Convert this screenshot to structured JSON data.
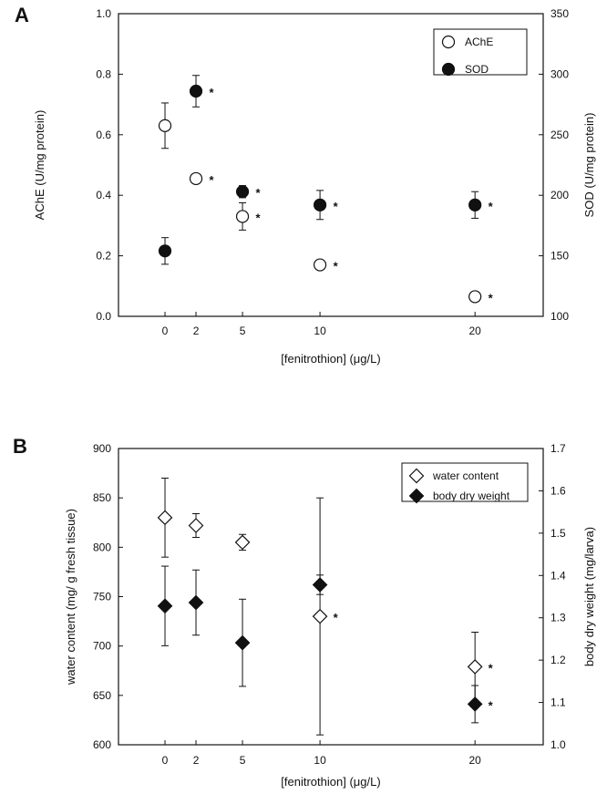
{
  "chart_data": [
    {
      "type": "scatter",
      "panel_label": "A",
      "xlabel": "[fenitrothion] (μg/L)",
      "ylabel_left": "AChE (U/mg protein)",
      "ylabel_right": "SOD (U/mg protein)",
      "x_ticks": [
        0,
        2,
        5,
        10,
        20
      ],
      "y_left_ticks": [
        "0.0",
        "0.2",
        "0.4",
        "0.6",
        "0.8",
        "1.0"
      ],
      "y_right_ticks": [
        "100",
        "150",
        "200",
        "250",
        "300",
        "350"
      ],
      "ylim_left": [
        0,
        1.0
      ],
      "ylim_right": [
        100,
        350
      ],
      "legend_position": "top-right",
      "series": [
        {
          "name": "AChE",
          "marker": "circle-open",
          "axis": "left",
          "x": [
            0,
            2,
            5,
            10,
            20
          ],
          "y": [
            0.63,
            0.455,
            0.33,
            0.17,
            0.065
          ],
          "err": [
            0.075,
            0.01,
            0.045,
            0.01,
            0.01
          ],
          "significant": [
            "",
            "*",
            "*",
            "*",
            "*"
          ]
        },
        {
          "name": "SOD",
          "marker": "circle-filled",
          "axis": "right",
          "x": [
            0,
            2,
            5,
            10,
            20
          ],
          "y": [
            154,
            286,
            203,
            192,
            192
          ],
          "err": [
            11,
            13,
            5,
            12,
            11
          ],
          "significant": [
            "",
            "*",
            "*",
            "*",
            "*"
          ]
        }
      ]
    },
    {
      "type": "scatter",
      "panel_label": "B",
      "xlabel": "[fenitrothion] (μg/L)",
      "ylabel_left": "water content (mg/ g fresh tissue)",
      "ylabel_right": "body dry weight (mg/larva)",
      "x_ticks": [
        0,
        2,
        5,
        10,
        20
      ],
      "y_left_ticks": [
        "600",
        "650",
        "700",
        "750",
        "800",
        "850",
        "900"
      ],
      "y_right_ticks": [
        "1.0",
        "1.1",
        "1.2",
        "1.3",
        "1.4",
        "1.5",
        "1.6",
        "1.7"
      ],
      "ylim_left": [
        600,
        900
      ],
      "ylim_right": [
        1.0,
        1.7
      ],
      "legend_position": "top-right",
      "series": [
        {
          "name": "water content",
          "marker": "diamond-open",
          "axis": "left",
          "x": [
            0,
            2,
            5,
            10,
            20
          ],
          "y": [
            830,
            822,
            805,
            730,
            679
          ],
          "err": [
            40,
            12,
            8,
            120,
            35
          ],
          "significant": [
            "",
            "",
            "",
            "*",
            "*"
          ]
        },
        {
          "name": "body dry weight",
          "marker": "diamond-filled",
          "axis": "right",
          "x": [
            0,
            2,
            5,
            10,
            20
          ],
          "y": [
            1.328,
            1.336,
            1.241,
            1.378,
            1.096
          ],
          "err": [
            0.094,
            0.077,
            0.103,
            0.023,
            0.044
          ],
          "significant": [
            "",
            "",
            "",
            "",
            "*"
          ]
        }
      ]
    }
  ]
}
